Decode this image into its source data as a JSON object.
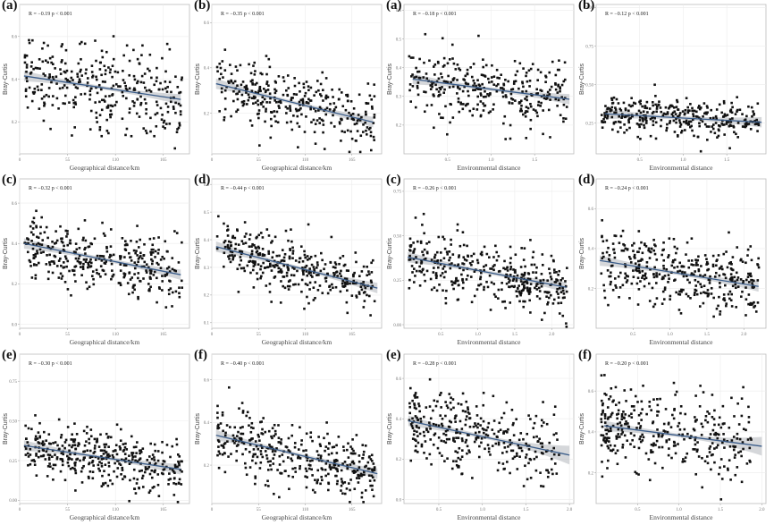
{
  "chart_data": [
    {
      "id": "geo-a",
      "panel_label": "(a)",
      "type": "scatter",
      "annotation": "R = −0.19 p < 0.001",
      "xlabel": "Geographical distance/km",
      "ylabel": "Bray-Curtis",
      "xlim": [
        0,
        195
      ],
      "ylim": [
        0.05,
        0.75
      ],
      "xticks": [
        0,
        55,
        110,
        165
      ],
      "xtick_labels": [
        "0",
        "55",
        "110",
        "165"
      ],
      "yticks": [
        0.2,
        0.4,
        0.6
      ],
      "ytick_labels": [
        "0.2",
        "0.4",
        "0.6"
      ],
      "fit": {
        "x0": 5,
        "y0": 0.415,
        "x1": 185,
        "y1": 0.305
      },
      "n_points": 330,
      "spread": 0.14,
      "seed": 11,
      "grid": true
    },
    {
      "id": "geo-b",
      "panel_label": "(b)",
      "type": "scatter",
      "annotation": "R = −0.35 p < 0.001",
      "xlabel": "Geographical distance/km",
      "ylabel": "Bray-Curtis",
      "xlim": [
        0,
        200
      ],
      "ylim": [
        0.02,
        0.68
      ],
      "xticks": [
        0,
        55,
        110,
        165
      ],
      "xtick_labels": [
        "0",
        "55",
        "110",
        "165"
      ],
      "yticks": [
        0.2,
        0.4,
        0.6
      ],
      "ytick_labels": [
        "0.2",
        "0.4",
        "0.6"
      ],
      "fit": {
        "x0": 5,
        "y0": 0.33,
        "x1": 190,
        "y1": 0.16
      },
      "n_points": 330,
      "spread": 0.1,
      "seed": 23,
      "grid": true
    },
    {
      "id": "env-a",
      "panel_label": "(a)",
      "type": "scatter",
      "annotation": "R = −0.18 p < 0.001",
      "xlabel": "Environmental distance",
      "ylabel": "Bray-Curtis",
      "xlim": [
        0.0,
        1.95
      ],
      "ylim": [
        0.1,
        0.62
      ],
      "xticks": [
        0.5,
        1.0,
        1.5
      ],
      "xtick_labels": [
        "0.5",
        "1.0",
        "1.5"
      ],
      "yticks": [
        0.2,
        0.3,
        0.4,
        0.5,
        0.6
      ],
      "ytick_labels": [
        "0.2",
        "0.3",
        "0.4",
        "0.5",
        "0.6"
      ],
      "fit": {
        "x0": 0.1,
        "y0": 0.36,
        "x1": 1.9,
        "y1": 0.29
      },
      "n_points": 330,
      "spread": 0.08,
      "seed": 37,
      "grid": true
    },
    {
      "id": "env-b",
      "panel_label": "(b)",
      "type": "scatter",
      "annotation": "R = −0.12 p < 0.001",
      "xlabel": "Environmental distance",
      "ylabel": "Bray-Curtis",
      "xlim": [
        0.0,
        1.95
      ],
      "ylim": [
        0.05,
        1.02
      ],
      "xticks": [
        0.5,
        1.0,
        1.5
      ],
      "xtick_labels": [
        "0.5",
        "1.0",
        "1.5"
      ],
      "yticks": [
        0.25,
        0.5,
        0.75,
        1.0
      ],
      "ytick_labels": [
        "0.25",
        "0.50",
        "0.75",
        "1.00"
      ],
      "fit": {
        "x0": 0.1,
        "y0": 0.31,
        "x1": 1.9,
        "y1": 0.255
      },
      "n_points": 330,
      "spread": 0.09,
      "seed": 41,
      "grid": true
    },
    {
      "id": "geo-c",
      "panel_label": "(c)",
      "type": "scatter",
      "annotation": "R = −0.32 p < 0.001",
      "xlabel": "Geographical distance/km",
      "ylabel": "Bray-Curtis",
      "xlim": [
        0,
        195
      ],
      "ylim": [
        -0.02,
        0.72
      ],
      "xticks": [
        0,
        55,
        110,
        165
      ],
      "xtick_labels": [
        "0",
        "55",
        "110",
        "165"
      ],
      "yticks": [
        0.0,
        0.2,
        0.4,
        0.6
      ],
      "ytick_labels": [
        "0.0",
        "0.2",
        "0.4",
        "0.6"
      ],
      "fit": {
        "x0": 5,
        "y0": 0.4,
        "x1": 185,
        "y1": 0.245
      },
      "n_points": 360,
      "spread": 0.11,
      "seed": 53,
      "grid": true
    },
    {
      "id": "geo-d",
      "panel_label": "(d)",
      "type": "scatter",
      "annotation": "R = −0.44 p < 0.001",
      "xlabel": "Geographical distance/km",
      "ylabel": "Bray-Curtis",
      "xlim": [
        0,
        200
      ],
      "ylim": [
        0.08,
        0.62
      ],
      "xticks": [
        0,
        55,
        110,
        165
      ],
      "xtick_labels": [
        "0",
        "55",
        "110",
        "165"
      ],
      "yticks": [
        0.1,
        0.2,
        0.3,
        0.4,
        0.5,
        0.6
      ],
      "ytick_labels": [
        "0.1",
        "0.2",
        "0.3",
        "0.4",
        "0.5",
        "0.6"
      ],
      "fit": {
        "x0": 5,
        "y0": 0.375,
        "x1": 195,
        "y1": 0.225
      },
      "n_points": 360,
      "spread": 0.075,
      "seed": 67,
      "grid": true
    },
    {
      "id": "env-c",
      "panel_label": "(c)",
      "type": "scatter",
      "annotation": "R = −0.26 p < 0.001",
      "xlabel": "Environmental distance",
      "ylabel": "Bray-Curtis",
      "xlim": [
        0.0,
        2.3
      ],
      "ylim": [
        -0.02,
        0.82
      ],
      "xticks": [
        0.5,
        1.0,
        1.5,
        2.0
      ],
      "xtick_labels": [
        "0.5",
        "1.0",
        "1.5",
        "2.0"
      ],
      "yticks": [
        0.0,
        0.25,
        0.5,
        0.75
      ],
      "ytick_labels": [
        "0.00",
        "0.25",
        "0.50",
        "0.75"
      ],
      "fit": {
        "x0": 0.05,
        "y0": 0.38,
        "x1": 2.2,
        "y1": 0.21
      },
      "n_points": 380,
      "spread": 0.12,
      "seed": 79,
      "grid": true
    },
    {
      "id": "env-d",
      "panel_label": "(d)",
      "type": "scatter",
      "annotation": "R = −0.24 p < 0.001",
      "xlabel": "Environmental distance",
      "ylabel": "Bray-Curtis",
      "xlim": [
        0.0,
        2.3
      ],
      "ylim": [
        0.0,
        0.75
      ],
      "xticks": [
        0.5,
        1.0,
        1.5,
        2.0
      ],
      "xtick_labels": [
        "0.5",
        "1.0",
        "1.5",
        "2.0"
      ],
      "yticks": [
        0.2,
        0.4,
        0.6
      ],
      "ytick_labels": [
        "0.2",
        "0.4",
        "0.6"
      ],
      "fit": {
        "x0": 0.05,
        "y0": 0.34,
        "x1": 2.2,
        "y1": 0.21
      },
      "n_points": 380,
      "spread": 0.12,
      "seed": 83,
      "grid": true
    },
    {
      "id": "geo-e",
      "panel_label": "(e)",
      "type": "scatter",
      "annotation": "R = −0.30 p < 0.001",
      "xlabel": "Geographical distance/km",
      "ylabel": "Bray-Curtis",
      "xlim": [
        0,
        195
      ],
      "ylim": [
        -0.02,
        0.92
      ],
      "xticks": [
        0,
        55,
        110,
        165
      ],
      "xtick_labels": [
        "0",
        "55",
        "110",
        "165"
      ],
      "yticks": [
        0.0,
        0.25,
        0.5,
        0.75
      ],
      "ytick_labels": [
        "0.00",
        "0.25",
        "0.50",
        "0.75"
      ],
      "fit": {
        "x0": 5,
        "y0": 0.345,
        "x1": 185,
        "y1": 0.195
      },
      "n_points": 380,
      "spread": 0.12,
      "seed": 97,
      "grid": true
    },
    {
      "id": "geo-f",
      "panel_label": "(f)",
      "type": "scatter",
      "annotation": "R = −0.40 p < 0.001",
      "xlabel": "Geographical distance/km",
      "ylabel": "Bray-Curtis",
      "xlim": [
        0,
        200
      ],
      "ylim": [
        0.02,
        0.72
      ],
      "xticks": [
        0,
        55,
        110,
        165
      ],
      "xtick_labels": [
        "0",
        "55",
        "110",
        "165"
      ],
      "yticks": [
        0.2,
        0.4,
        0.6
      ],
      "ytick_labels": [
        "0.2",
        "0.4",
        "0.6"
      ],
      "fit": {
        "x0": 5,
        "y0": 0.34,
        "x1": 195,
        "y1": 0.16
      },
      "n_points": 380,
      "spread": 0.1,
      "seed": 101,
      "grid": true
    },
    {
      "id": "env-e",
      "panel_label": "(e)",
      "type": "scatter",
      "annotation": "R = −0.28 p < 0.001",
      "xlabel": "Environmental distance",
      "ylabel": "Bray-Curtis",
      "xlim": [
        0.1,
        2.05
      ],
      "ylim": [
        -0.02,
        0.72
      ],
      "xticks": [
        0.5,
        1.0,
        1.5,
        2.0
      ],
      "xtick_labels": [
        "0.5",
        "1.0",
        "1.5",
        "2.0"
      ],
      "yticks": [
        0.0,
        0.2,
        0.4,
        0.6
      ],
      "ytick_labels": [
        "0.0",
        "0.2",
        "0.4",
        "0.6"
      ],
      "fit": {
        "x0": 0.15,
        "y0": 0.39,
        "x1": 2.0,
        "y1": 0.22
      },
      "n_points": 330,
      "spread": 0.13,
      "seed": 113,
      "grid": true,
      "x_skew": 0.55
    },
    {
      "id": "env-f",
      "panel_label": "(f)",
      "type": "scatter",
      "annotation": "R = −0.20 p < 0.001",
      "xlabel": "Environmental distance",
      "ylabel": "Bray-Curtis",
      "xlim": [
        0.0,
        2.05
      ],
      "ylim": [
        0.05,
        0.78
      ],
      "xticks": [
        0.5,
        1.0,
        1.5,
        2.0
      ],
      "xtick_labels": [
        "0.5",
        "1.0",
        "1.5",
        "2.0"
      ],
      "yticks": [
        0.2,
        0.4,
        0.6
      ],
      "ytick_labels": [
        "0.2",
        "0.4",
        "0.6"
      ],
      "fit": {
        "x0": 0.1,
        "y0": 0.43,
        "x1": 2.0,
        "y1": 0.33
      },
      "n_points": 340,
      "spread": 0.14,
      "seed": 127,
      "grid": true,
      "x_skew": 0.6
    }
  ]
}
